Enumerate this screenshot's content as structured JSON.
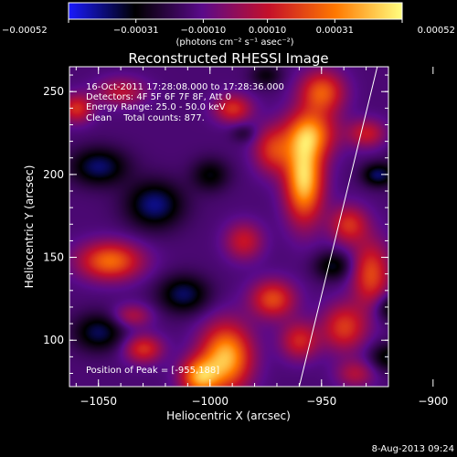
{
  "chart_data": {
    "type": "heatmap",
    "title": "Reconstructed RHESSI Image",
    "xlabel": "Heliocentric X (arcsec)",
    "ylabel": "Heliocentric Y (arcsec)",
    "xlim": [
      -1063,
      -920
    ],
    "ylim": [
      72,
      265
    ],
    "x_ticks": [
      {
        "value": -1050,
        "label": "−1050"
      },
      {
        "value": -1000,
        "label": "−1000"
      },
      {
        "value": -950,
        "label": "−950"
      },
      {
        "value": -900,
        "label": "−900"
      }
    ],
    "y_ticks": [
      {
        "value": 100,
        "label": "100"
      },
      {
        "value": 150,
        "label": "150"
      },
      {
        "value": 200,
        "label": "200"
      },
      {
        "value": 250,
        "label": "250"
      }
    ],
    "colorbar": {
      "range": [
        -0.00052,
        0.00052
      ],
      "ticks": [
        {
          "value": -0.00052,
          "label": "−0.00052"
        },
        {
          "value": -0.00031,
          "label": "−0.00031"
        },
        {
          "value": -0.0001,
          "label": "−0.00010"
        },
        {
          "value": 0.0001,
          "label": "0.00010"
        },
        {
          "value": 0.00031,
          "label": "0.00031"
        },
        {
          "value": 0.00052,
          "label": "0.00052"
        }
      ],
      "units": "(photons cm⁻² s⁻¹ asec⁻²)",
      "colors": [
        "#1a1aff",
        "#000000",
        "#5a0a8a",
        "#c4102a",
        "#ff7800",
        "#ffff80"
      ]
    },
    "annotations": [
      "16-Oct-2011 17:28:08.000 to 17:28:36.000",
      "Detectors: 4F 5F 6F 7F 8F, Att 0",
      "Energy Range: 25.0 - 50.0 keV",
      "Clean    Total counts: 877."
    ],
    "peak_label": "Position of Peak = [-955,188]",
    "peak_position": [
      -955,
      188
    ],
    "limb_line": [
      [
        -960,
        72
      ],
      [
        -925,
        265
      ]
    ],
    "intensity_blobs": [
      {
        "x": -958,
        "y": 198,
        "sx": 6,
        "sy": 18,
        "v": 0.0006
      },
      {
        "x": -955,
        "y": 225,
        "sx": 8,
        "sy": 10,
        "v": 0.0004
      },
      {
        "x": -950,
        "y": 250,
        "sx": 7,
        "sy": 9,
        "v": 0.00038
      },
      {
        "x": -972,
        "y": 215,
        "sx": 6,
        "sy": 10,
        "v": 0.0003
      },
      {
        "x": -990,
        "y": 240,
        "sx": 6,
        "sy": 6,
        "v": 0.0003
      },
      {
        "x": -985,
        "y": 160,
        "sx": 6,
        "sy": 8,
        "v": 0.00025
      },
      {
        "x": -993,
        "y": 90,
        "sx": 8,
        "sy": 14,
        "v": 0.00055
      },
      {
        "x": -1005,
        "y": 78,
        "sx": 6,
        "sy": 8,
        "v": 0.00045
      },
      {
        "x": -972,
        "y": 125,
        "sx": 7,
        "sy": 8,
        "v": 0.00035
      },
      {
        "x": -960,
        "y": 100,
        "sx": 6,
        "sy": 8,
        "v": 0.00028
      },
      {
        "x": -1045,
        "y": 148,
        "sx": 10,
        "sy": 8,
        "v": 0.00042
      },
      {
        "x": -1030,
        "y": 95,
        "sx": 6,
        "sy": 6,
        "v": 0.0003
      },
      {
        "x": -1060,
        "y": 240,
        "sx": 5,
        "sy": 6,
        "v": 0.0003
      },
      {
        "x": -1040,
        "y": 250,
        "sx": 8,
        "sy": 6,
        "v": 0.00022
      },
      {
        "x": -1035,
        "y": 115,
        "sx": 6,
        "sy": 5,
        "v": 0.0002
      },
      {
        "x": -928,
        "y": 140,
        "sx": 6,
        "sy": 14,
        "v": 0.00035
      },
      {
        "x": -938,
        "y": 170,
        "sx": 6,
        "sy": 8,
        "v": 0.0003
      },
      {
        "x": -940,
        "y": 108,
        "sx": 7,
        "sy": 10,
        "v": 0.00032
      },
      {
        "x": -905,
        "y": 205,
        "sx": 6,
        "sy": 6,
        "v": 0.00025
      },
      {
        "x": -930,
        "y": 225,
        "sx": 6,
        "sy": 6,
        "v": 0.00025
      },
      {
        "x": -908,
        "y": 248,
        "sx": 5,
        "sy": 6,
        "v": 0.00022
      },
      {
        "x": -935,
        "y": 80,
        "sx": 6,
        "sy": 6,
        "v": 0.0002
      },
      {
        "x": -902,
        "y": 205,
        "sx": 8,
        "sy": 10,
        "v": -0.00052
      },
      {
        "x": -925,
        "y": 200,
        "sx": 5,
        "sy": 5,
        "v": -0.00025
      },
      {
        "x": -1025,
        "y": 182,
        "sx": 9,
        "sy": 10,
        "v": -0.00028
      },
      {
        "x": -1050,
        "y": 205,
        "sx": 9,
        "sy": 8,
        "v": -0.00026
      },
      {
        "x": -1012,
        "y": 128,
        "sx": 8,
        "sy": 8,
        "v": -0.00025
      },
      {
        "x": -1000,
        "y": 200,
        "sx": 6,
        "sy": 7,
        "v": -0.00018
      },
      {
        "x": -945,
        "y": 145,
        "sx": 6,
        "sy": 6,
        "v": -0.0002
      },
      {
        "x": -918,
        "y": 120,
        "sx": 6,
        "sy": 6,
        "v": -0.00022
      },
      {
        "x": -1050,
        "y": 105,
        "sx": 8,
        "sy": 8,
        "v": -0.00024
      },
      {
        "x": -975,
        "y": 260,
        "sx": 5,
        "sy": 5,
        "v": -0.00015
      },
      {
        "x": -920,
        "y": 90,
        "sx": 6,
        "sy": 6,
        "v": -0.0002
      },
      {
        "x": -985,
        "y": 225,
        "sx": 4,
        "sy": 4,
        "v": -0.0001
      }
    ]
  },
  "footer": {
    "date": "8-Aug-2013 09:24"
  }
}
